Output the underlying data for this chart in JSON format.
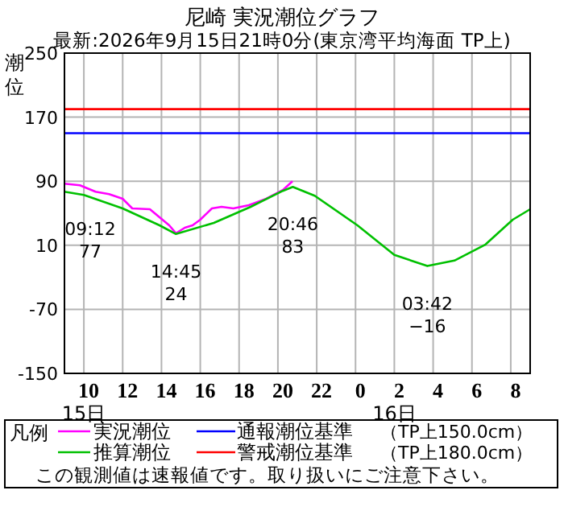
{
  "chart_data": {
    "type": "line",
    "title": "尼崎 実況潮位グラフ",
    "subtitle": "最新:2026年9月15日21時0分(東京湾平均海面 TP上)",
    "ylabel": "潮位",
    "legend_title": "凡例",
    "xlim": [
      "2026-09-15T09:00",
      "2026-09-16T09:00"
    ],
    "xticks": [
      {
        "value": "2026-09-15T10:00",
        "label": "10"
      },
      {
        "value": "2026-09-15T12:00",
        "label": "12"
      },
      {
        "value": "2026-09-15T14:00",
        "label": "14"
      },
      {
        "value": "2026-09-15T16:00",
        "label": "16"
      },
      {
        "value": "2026-09-15T18:00",
        "label": "18"
      },
      {
        "value": "2026-09-15T20:00",
        "label": "20"
      },
      {
        "value": "2026-09-15T22:00",
        "label": "22"
      },
      {
        "value": "2026-09-16T00:00",
        "label": "0"
      },
      {
        "value": "2026-09-16T02:00",
        "label": "2"
      },
      {
        "value": "2026-09-16T04:00",
        "label": "4"
      },
      {
        "value": "2026-09-16T06:00",
        "label": "6"
      },
      {
        "value": "2026-09-16T08:00",
        "label": "8"
      }
    ],
    "ylim": [
      -150,
      250
    ],
    "yticks": [
      -150,
      -70,
      10,
      90,
      170,
      250
    ],
    "grid": true,
    "legend": "bottom",
    "series": [
      {
        "name": "実況潮位",
        "color": "#ff00ff",
        "x": [
          "2026-09-15T09:00",
          "2026-09-15T09:48",
          "2026-09-15T10:36",
          "2026-09-15T11:18",
          "2026-09-15T12:00",
          "2026-09-15T12:30",
          "2026-09-15T13:24",
          "2026-09-15T13:54",
          "2026-09-15T14:24",
          "2026-09-15T14:45",
          "2026-09-15T15:12",
          "2026-09-15T15:36",
          "2026-09-15T16:00",
          "2026-09-15T16:36",
          "2026-09-15T17:06",
          "2026-09-15T17:42",
          "2026-09-15T18:30",
          "2026-09-15T19:24",
          "2026-09-15T20:15",
          "2026-09-15T20:45"
        ],
        "values": [
          87,
          85,
          77,
          74,
          68,
          56,
          55,
          45,
          35,
          25,
          32,
          35,
          42,
          56,
          58,
          56,
          60,
          68,
          79,
          90
        ]
      },
      {
        "name": "推算潮位",
        "color": "#00c000",
        "x": [
          "2026-09-15T09:00",
          "2026-09-15T10:00",
          "2026-09-15T12:00",
          "2026-09-15T13:54",
          "2026-09-15T14:45",
          "2026-09-15T16:42",
          "2026-09-15T18:36",
          "2026-09-15T20:15",
          "2026-09-15T20:46",
          "2026-09-15T21:54",
          "2026-09-16T00:06",
          "2026-09-16T02:00",
          "2026-09-16T03:42",
          "2026-09-16T05:06",
          "2026-09-16T06:42",
          "2026-09-16T08:06",
          "2026-09-16T09:00"
        ],
        "values": [
          77,
          73,
          56,
          35,
          24,
          38,
          58,
          78,
          83,
          72,
          35,
          -2,
          -16,
          -9,
          11,
          42,
          55
        ]
      }
    ],
    "ref_lines": [
      {
        "axis": "y",
        "value": 150,
        "label": "通報潮位基準",
        "color": "#0000ff"
      },
      {
        "axis": "y",
        "value": 180,
        "label": "警戒潮位基準",
        "color": "#ff0000"
      }
    ],
    "annotations": [
      {
        "text": "09:12\n77",
        "x": "2026-09-15T09:12",
        "y": 77
      },
      {
        "text": "14:45\n24",
        "x": "2026-09-15T14:45",
        "y": 24
      },
      {
        "text": "20:46\n83",
        "x": "2026-09-15T20:46",
        "y": 83
      },
      {
        "text": "03:42\n−16",
        "x": "2026-09-16T03:42",
        "y": -16
      },
      "15日",
      "16日",
      "（TP上150.0cm）",
      "（TP上180.0cm）",
      "この観測値は速報値です。取り扱いにご注意下さい。"
    ]
  }
}
